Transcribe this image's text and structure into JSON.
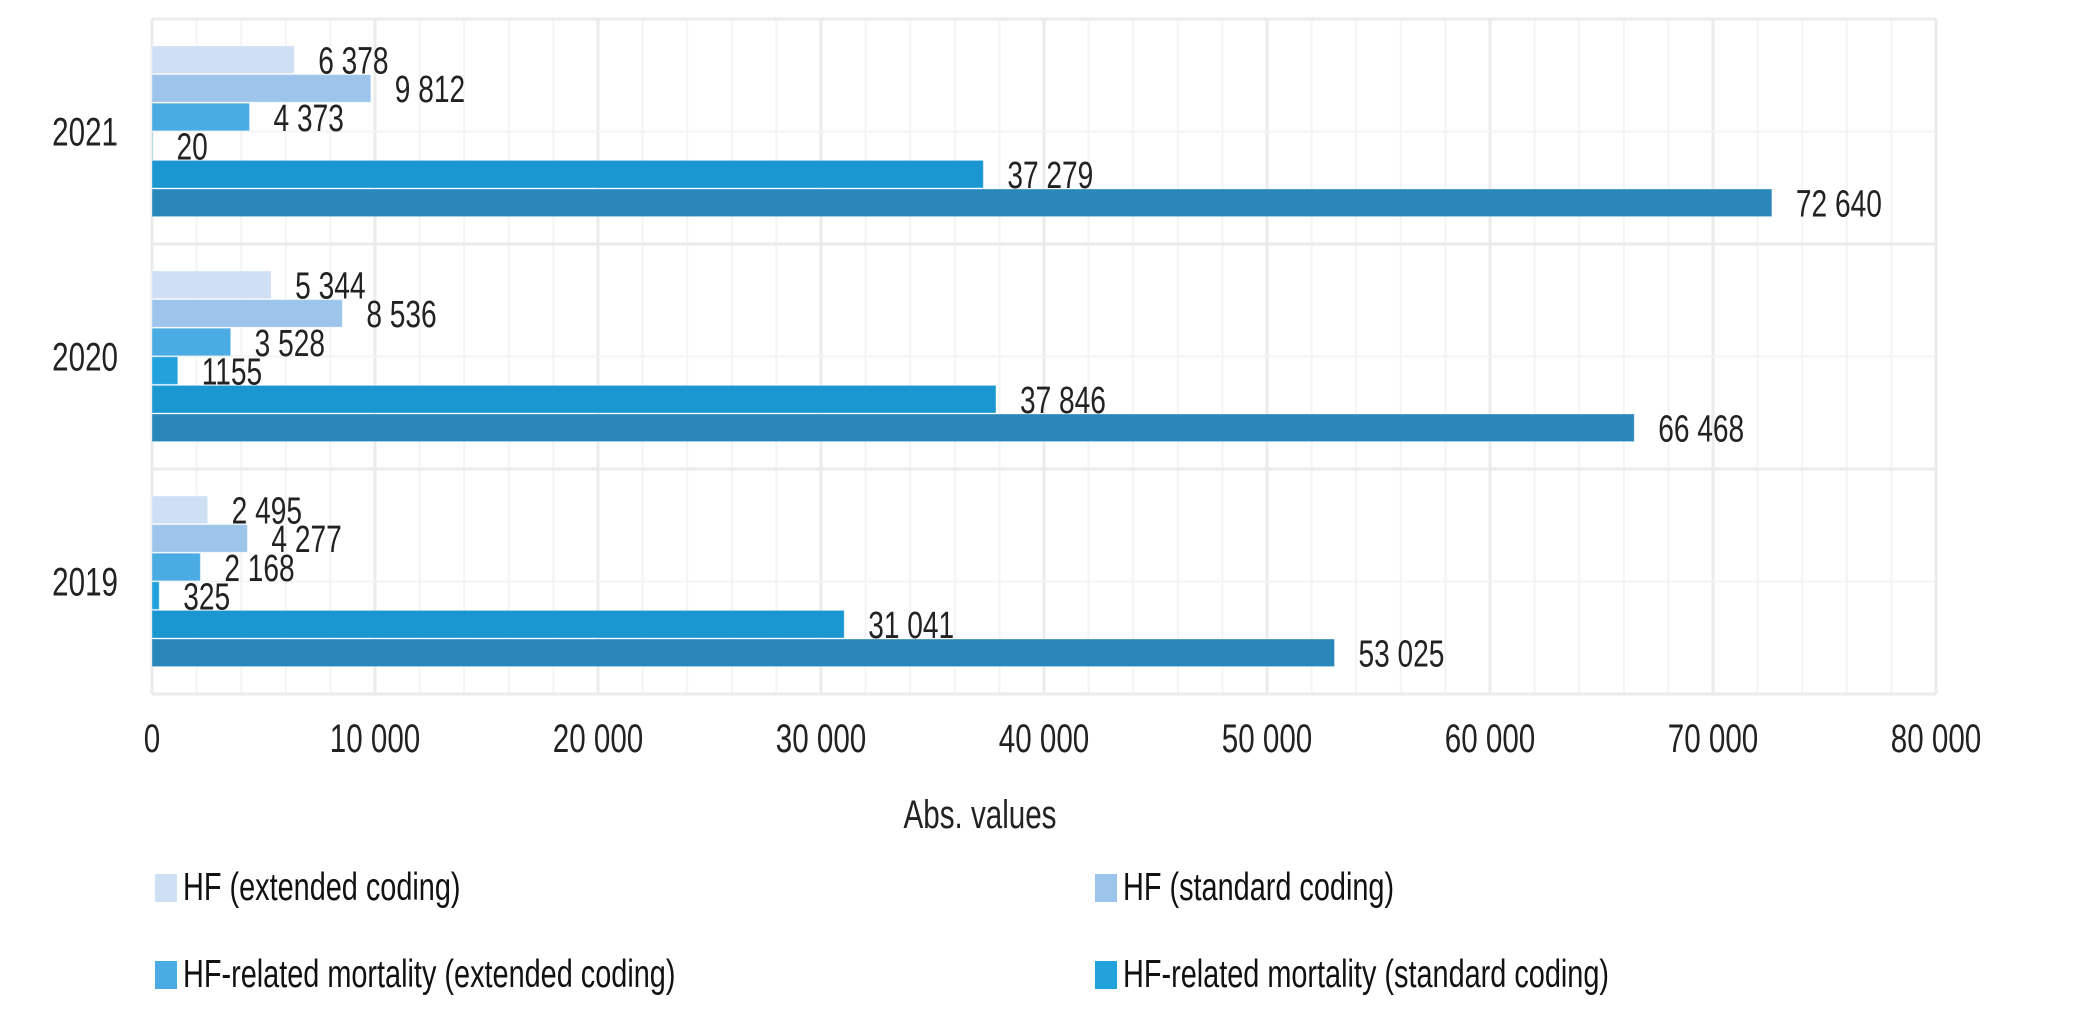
{
  "chart_data": {
    "type": "bar",
    "orientation": "horizontal",
    "title": "",
    "xlabel": "Abs. values",
    "ylabel": "",
    "xlim": [
      0,
      80000
    ],
    "x_ticks": [
      0,
      10000,
      20000,
      30000,
      40000,
      50000,
      60000,
      70000,
      80000
    ],
    "x_tick_labels": [
      "0",
      "10 000",
      "20 000",
      "30 000",
      "40 000",
      "50 000",
      "60 000",
      "70 000",
      "80 000"
    ],
    "minor_grid_step": 2000,
    "grid": true,
    "categories": [
      "2021",
      "2020",
      "2019"
    ],
    "series": [
      {
        "name": "HF (extended coding)",
        "color": "#cfdff4",
        "values": [
          6378,
          5344,
          2495
        ],
        "labels": [
          "6 378",
          "5 344",
          "2 495"
        ]
      },
      {
        "name": "HF (standard coding)",
        "color": "#9dc5eb",
        "values": [
          9812,
          8536,
          4277
        ],
        "labels": [
          "9 812",
          "8 536",
          "4 277"
        ]
      },
      {
        "name": "HF-related mortality (extended coding)",
        "color": "#4aace2",
        "values": [
          4373,
          3528,
          2168
        ],
        "labels": [
          "4 373",
          "3 528",
          "2 168"
        ]
      },
      {
        "name": "HF-related mortality (standard coding)",
        "color": "#22a2dd",
        "values": [
          20,
          1155,
          325
        ],
        "labels": [
          "20",
          "1155",
          "325"
        ]
      },
      {
        "name": "",
        "color": "#1a97d1",
        "values": [
          37279,
          37846,
          31041
        ],
        "labels": [
          "37 279",
          "37 846",
          "31 041"
        ]
      },
      {
        "name": "",
        "color": "#2a87ba",
        "values": [
          72640,
          66468,
          53025
        ],
        "labels": [
          "72 640",
          "66 468",
          "53 025"
        ]
      }
    ],
    "legend": {
      "placement": "bottom",
      "entries": [
        {
          "label": "HF (extended coding)",
          "color": "#cfdff4"
        },
        {
          "label": "HF (standard coding)",
          "color": "#9dc5eb"
        },
        {
          "label": "HF-related mortality (extended coding)",
          "color": "#4aace2"
        },
        {
          "label": "HF-related mortality (standard coding)",
          "color": "#22a2dd"
        }
      ]
    }
  }
}
